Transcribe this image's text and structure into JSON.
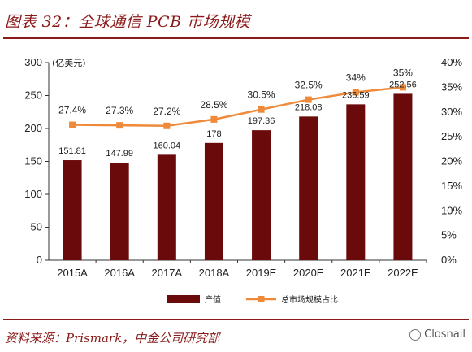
{
  "header": {
    "title": "图表 32：全球通信 PCB 市场规模"
  },
  "footer": {
    "source": "资料来源：Prismark，中金公司研究部",
    "watermark": "Closnail"
  },
  "colors": {
    "bar": "#6b0a0a",
    "line": "#ee8a3a",
    "accent": "#8b1a1a"
  },
  "chart_data": {
    "type": "bar",
    "categories": [
      "2015A",
      "2016A",
      "2017A",
      "2018A",
      "2019E",
      "2020E",
      "2021E",
      "2022E"
    ],
    "series": [
      {
        "name": "产值",
        "type": "bar",
        "axis": "left",
        "values": [
          151.81,
          147.99,
          160.04,
          178,
          197.36,
          218.08,
          236.59,
          252.56
        ]
      },
      {
        "name": "总市场规模占比",
        "type": "line",
        "axis": "right",
        "values": [
          27.4,
          27.3,
          27.2,
          28.5,
          30.5,
          32.5,
          34,
          35
        ]
      }
    ],
    "value_labels": [
      "151.81",
      "147.99",
      "160.04",
      "178",
      "197.36",
      "218.08",
      "236.59",
      "252.56"
    ],
    "pct_labels": [
      "27.4%",
      "27.3%",
      "27.2%",
      "28.5%",
      "30.5%",
      "32.5%",
      "34%",
      "35%"
    ],
    "y_left": {
      "unit": "(亿美元)",
      "ylim": [
        0,
        300
      ],
      "ticks": [
        "0",
        "50",
        "100",
        "150",
        "200",
        "250",
        "300"
      ]
    },
    "y_right": {
      "ylim": [
        0,
        40
      ],
      "ticks": [
        "0%",
        "5%",
        "10%",
        "15%",
        "20%",
        "25%",
        "30%",
        "35%",
        "40%"
      ]
    },
    "grid": false,
    "legend_position": "bottom"
  }
}
